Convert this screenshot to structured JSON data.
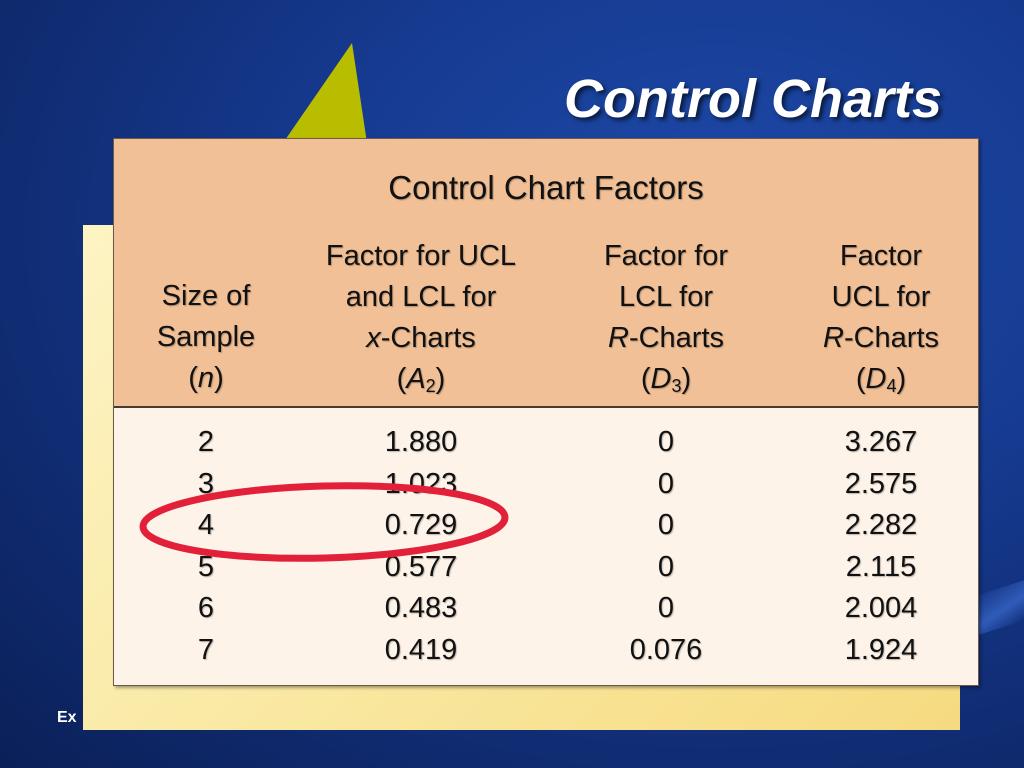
{
  "slide": {
    "title": "Control Charts",
    "footer": "Ex"
  },
  "table": {
    "title": "Control Chart Factors",
    "columns": [
      {
        "lines": [
          "Size of",
          "Sample"
        ],
        "symbol": "n",
        "subscript": ""
      },
      {
        "lines": [
          "Factor for UCL",
          "and LCL for"
        ],
        "italic_prefix": "x",
        "suffix": "-Charts",
        "symbol": "A",
        "subscript": "2"
      },
      {
        "lines": [
          "Factor for",
          "LCL for"
        ],
        "italic_prefix": "R",
        "suffix": "-Charts",
        "symbol": "D",
        "subscript": "3"
      },
      {
        "lines": [
          "Factor",
          "UCL for"
        ],
        "italic_prefix": "R",
        "suffix": "-Charts",
        "symbol": "D",
        "subscript": "4"
      }
    ],
    "rows": [
      [
        "2",
        "1.880",
        "0",
        "3.267"
      ],
      [
        "3",
        "1.023",
        "0",
        "2.575"
      ],
      [
        "4",
        "0.729",
        "0",
        "2.282"
      ],
      [
        "5",
        "0.577",
        "0",
        "2.115"
      ],
      [
        "6",
        "0.483",
        "0",
        "2.004"
      ],
      [
        "7",
        "0.419",
        "0.076",
        "1.924"
      ]
    ]
  },
  "colors": {
    "header_bg": "#f1c096",
    "body_bg": "#fdf3e8",
    "highlight": "#e3203a",
    "triangle": "#b9bd00"
  }
}
